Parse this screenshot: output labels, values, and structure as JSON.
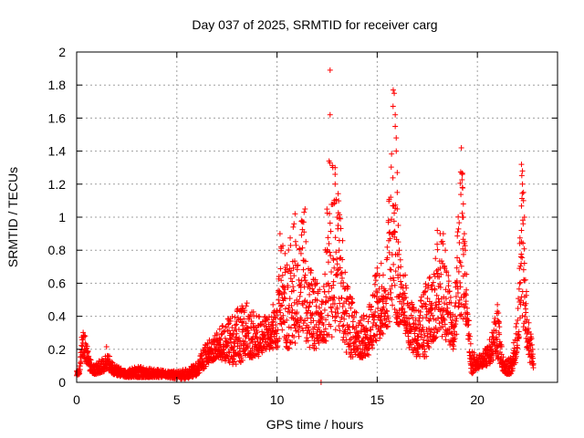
{
  "chart_data": {
    "type": "scatter",
    "title": "Day 037 of 2025, SRMTID for receiver carg",
    "xlabel": "GPS time / hours",
    "ylabel": "SRMTID / TECUs",
    "xlim": [
      0,
      24
    ],
    "ylim": [
      0,
      2
    ],
    "x_ticks": [
      0,
      5,
      10,
      15,
      20
    ],
    "x_tick_labels": [
      "0",
      "5",
      "10",
      "15",
      "20"
    ],
    "y_ticks": [
      0,
      0.2,
      0.4,
      0.6,
      0.8,
      1,
      1.2,
      1.4,
      1.6,
      1.8,
      2
    ],
    "y_tick_labels": [
      "0",
      "0.2",
      "0.4",
      "0.6",
      "0.8",
      "1",
      "1.2",
      "1.4",
      "1.6",
      "1.8",
      "2"
    ],
    "grid": true,
    "marker": "+",
    "color": "#ff0000",
    "data_range_x": [
      0,
      22.8
    ],
    "series": [
      {
        "name": "SRMTID",
        "envelope": [
          [
            0.0,
            0.04,
            0.07
          ],
          [
            0.15,
            0.05,
            0.1
          ],
          [
            0.25,
            0.15,
            0.33
          ],
          [
            0.4,
            0.15,
            0.3
          ],
          [
            0.6,
            0.08,
            0.18
          ],
          [
            0.8,
            0.05,
            0.1
          ],
          [
            1.0,
            0.05,
            0.12
          ],
          [
            1.3,
            0.06,
            0.16
          ],
          [
            1.5,
            0.08,
            0.22
          ],
          [
            1.8,
            0.05,
            0.12
          ],
          [
            2.0,
            0.04,
            0.1
          ],
          [
            2.5,
            0.03,
            0.07
          ],
          [
            3.0,
            0.03,
            0.1
          ],
          [
            3.5,
            0.03,
            0.09
          ],
          [
            4.0,
            0.03,
            0.08
          ],
          [
            4.5,
            0.03,
            0.07
          ],
          [
            5.0,
            0.02,
            0.07
          ],
          [
            5.5,
            0.02,
            0.08
          ],
          [
            6.0,
            0.04,
            0.12
          ],
          [
            6.5,
            0.1,
            0.25
          ],
          [
            7.0,
            0.15,
            0.3
          ],
          [
            7.5,
            0.12,
            0.38
          ],
          [
            8.0,
            0.1,
            0.45
          ],
          [
            8.5,
            0.15,
            0.48
          ],
          [
            9.0,
            0.15,
            0.4
          ],
          [
            9.5,
            0.2,
            0.4
          ],
          [
            10.0,
            0.2,
            0.45
          ],
          [
            10.2,
            0.3,
            0.88
          ],
          [
            10.5,
            0.2,
            0.8
          ],
          [
            10.8,
            0.22,
            0.95
          ],
          [
            11.0,
            0.25,
            0.8
          ],
          [
            11.3,
            0.3,
            1.05
          ],
          [
            11.6,
            0.2,
            0.72
          ],
          [
            12.0,
            0.2,
            0.6
          ],
          [
            12.3,
            0.25,
            0.55
          ],
          [
            12.6,
            0.25,
            1.34
          ],
          [
            12.9,
            0.3,
            1.3
          ],
          [
            13.2,
            0.3,
            1.0
          ],
          [
            13.5,
            0.15,
            0.6
          ],
          [
            14.0,
            0.15,
            0.42
          ],
          [
            14.5,
            0.15,
            0.4
          ],
          [
            15.0,
            0.25,
            0.72
          ],
          [
            15.4,
            0.3,
            0.55
          ],
          [
            15.8,
            0.4,
            1.76
          ],
          [
            16.0,
            0.35,
            0.85
          ],
          [
            16.3,
            0.35,
            0.65
          ],
          [
            16.6,
            0.2,
            0.5
          ],
          [
            17.0,
            0.15,
            0.45
          ],
          [
            17.5,
            0.15,
            0.63
          ],
          [
            17.8,
            0.25,
            0.7
          ],
          [
            18.1,
            0.3,
            0.92
          ],
          [
            18.4,
            0.25,
            0.8
          ],
          [
            18.8,
            0.2,
            0.4
          ],
          [
            19.2,
            0.4,
            1.42
          ],
          [
            19.5,
            0.3,
            0.55
          ],
          [
            19.7,
            0.05,
            0.2
          ],
          [
            20.0,
            0.08,
            0.15
          ],
          [
            20.5,
            0.1,
            0.22
          ],
          [
            21.0,
            0.15,
            0.45
          ],
          [
            21.3,
            0.05,
            0.15
          ],
          [
            21.7,
            0.05,
            0.15
          ],
          [
            22.0,
            0.15,
            0.4
          ],
          [
            22.2,
            0.4,
            1.32
          ],
          [
            22.4,
            0.25,
            0.6
          ],
          [
            22.6,
            0.12,
            0.35
          ],
          [
            22.8,
            0.08,
            0.2
          ]
        ],
        "points": [
          [
            12.2,
            0.0
          ],
          [
            12.65,
            1.89
          ],
          [
            12.65,
            1.62
          ],
          [
            12.6,
            1.34
          ],
          [
            12.9,
            1.3
          ],
          [
            12.9,
            1.26
          ],
          [
            12.9,
            1.2
          ],
          [
            13.0,
            1.0
          ],
          [
            13.05,
            0.95
          ],
          [
            13.1,
            0.8
          ],
          [
            12.8,
            0.75
          ],
          [
            11.4,
            1.05
          ],
          [
            11.35,
            1.03
          ],
          [
            10.85,
            0.96
          ],
          [
            10.9,
            1.02
          ],
          [
            10.15,
            0.9
          ],
          [
            10.2,
            0.82
          ],
          [
            10.4,
            0.78
          ],
          [
            15.8,
            1.77
          ],
          [
            15.85,
            1.75
          ],
          [
            15.9,
            1.62
          ],
          [
            15.9,
            1.55
          ],
          [
            15.95,
            1.48
          ],
          [
            15.95,
            1.4
          ],
          [
            16.0,
            1.27
          ],
          [
            16.0,
            1.15
          ],
          [
            16.0,
            1.05
          ],
          [
            16.05,
            0.95
          ],
          [
            16.05,
            0.85
          ],
          [
            16.1,
            0.8
          ],
          [
            19.2,
            1.42
          ],
          [
            19.25,
            1.26
          ],
          [
            19.25,
            1.18
          ],
          [
            19.3,
            1.08
          ],
          [
            19.3,
            1.0
          ],
          [
            19.35,
            0.9
          ],
          [
            19.4,
            0.8
          ],
          [
            22.2,
            1.32
          ],
          [
            22.25,
            1.28
          ],
          [
            22.25,
            1.2
          ],
          [
            22.3,
            1.15
          ],
          [
            22.3,
            1.1
          ],
          [
            22.35,
            1.0
          ],
          [
            22.2,
            0.92
          ],
          [
            22.2,
            0.85
          ],
          [
            18.0,
            0.92
          ],
          [
            18.3,
            0.9
          ],
          [
            18.2,
            0.85
          ],
          [
            18.4,
            0.8
          ],
          [
            15.2,
            0.72
          ],
          [
            15.3,
            0.65
          ],
          [
            16.4,
            0.65
          ],
          [
            22.4,
            0.62
          ],
          [
            22.45,
            0.55
          ],
          [
            21.0,
            0.47
          ],
          [
            21.05,
            0.42
          ],
          [
            22.1,
            0.69
          ],
          [
            17.6,
            0.63
          ],
          [
            17.7,
            0.58
          ],
          [
            9.8,
            0.47
          ],
          [
            8.5,
            0.48
          ],
          [
            8.3,
            0.45
          ],
          [
            13.3,
            0.58
          ],
          [
            12.0,
            0.6
          ],
          [
            11.8,
            0.55
          ]
        ]
      }
    ]
  }
}
